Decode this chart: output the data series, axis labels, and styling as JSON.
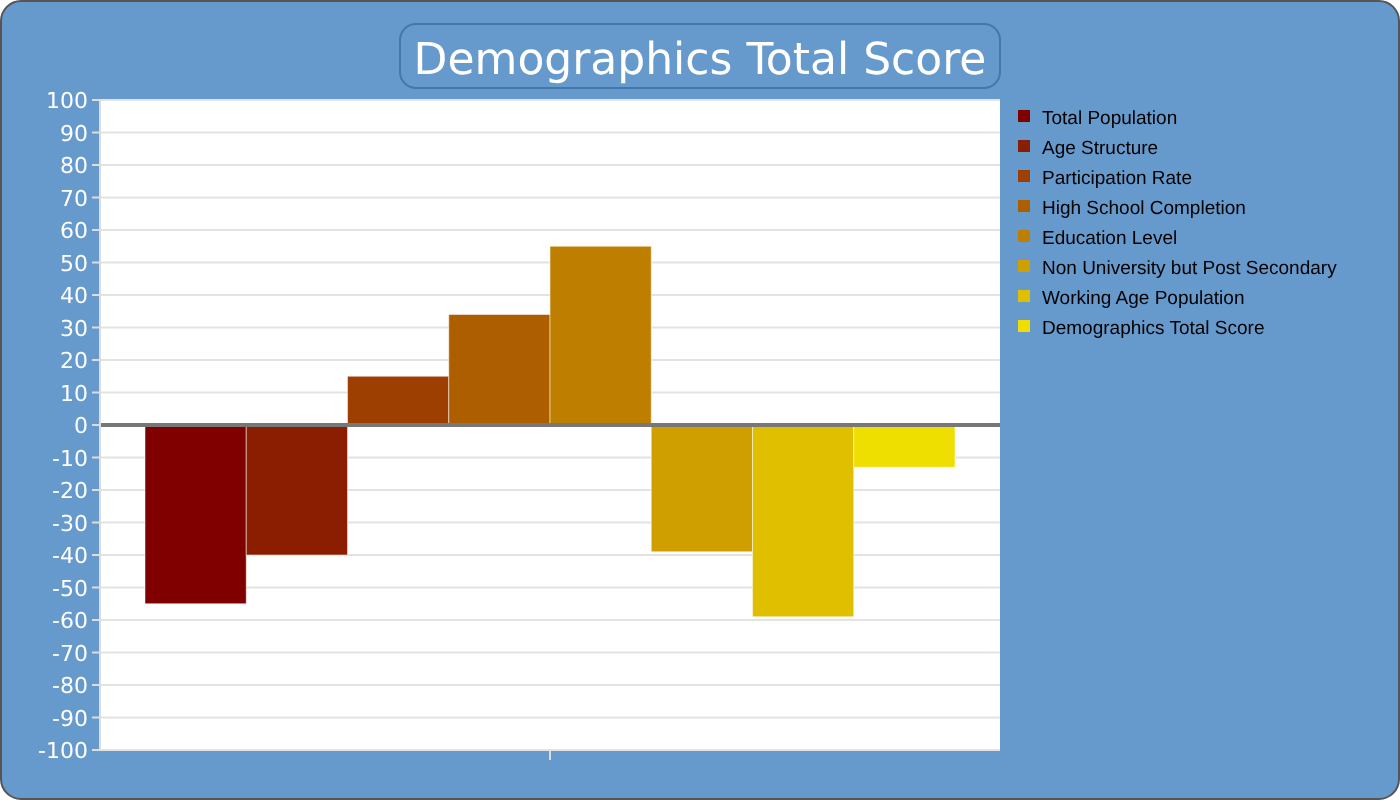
{
  "chart_data": {
    "type": "bar",
    "title": "Demographics Total Score",
    "categories": [
      null
    ],
    "series": [
      {
        "name": "Total Population",
        "color": "#800000",
        "values": [
          -55
        ]
      },
      {
        "name": "Age Structure",
        "color": "#8b1e00",
        "values": [
          -40
        ]
      },
      {
        "name": "Participation Rate",
        "color": "#9c3f00",
        "values": [
          15
        ]
      },
      {
        "name": "High School Completion",
        "color": "#ad5f00",
        "values": [
          34
        ]
      },
      {
        "name": "Education Level",
        "color": "#be7f00",
        "values": [
          55
        ]
      },
      {
        "name": "Non University but Post Secondary",
        "color": "#cf9f00",
        "values": [
          -39
        ]
      },
      {
        "name": "Working Age Population",
        "color": "#dfbf00",
        "values": [
          -59
        ]
      },
      {
        "name": "Demographics Total Score",
        "color": "#efdf00",
        "values": [
          -13
        ]
      }
    ],
    "ylim": [
      -100,
      100
    ],
    "yticks": [
      -100,
      -90,
      -80,
      -70,
      -60,
      -50,
      -40,
      -30,
      -20,
      -10,
      0,
      10,
      20,
      30,
      40,
      50,
      60,
      70,
      80,
      90,
      100
    ],
    "grid": "y",
    "legend": "right"
  }
}
